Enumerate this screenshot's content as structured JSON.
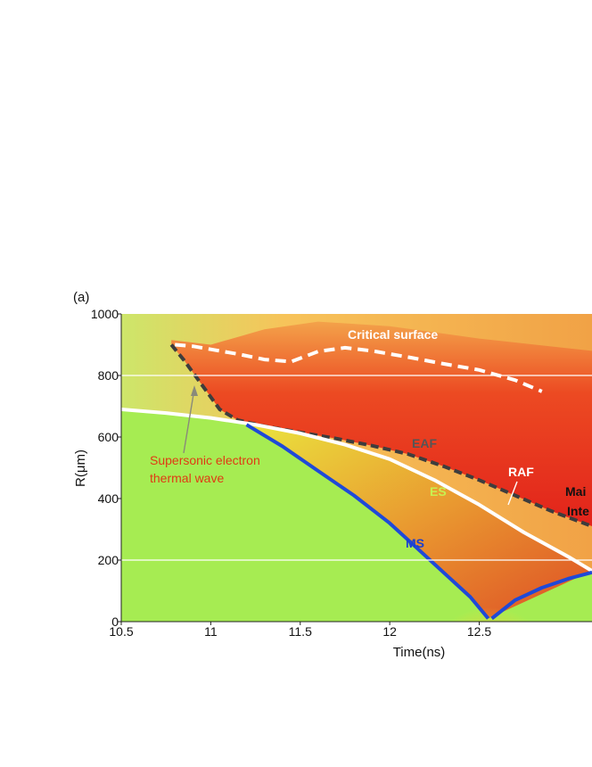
{
  "chart_data": {
    "type": "heatmap",
    "panel_label": "(a)",
    "xlabel": "Time(ns)",
    "ylabel": "R(μm)",
    "xlim": [
      10.5,
      13.13
    ],
    "ylim": [
      0,
      1000
    ],
    "x_ticks": [
      10.5,
      11,
      11.5,
      12,
      12.5
    ],
    "x_tick_labels": [
      "10.5",
      "11",
      "11.5",
      "12",
      "12.5"
    ],
    "y_ticks": [
      0,
      200,
      400,
      600,
      800,
      1000
    ],
    "y_tick_labels": [
      "0",
      "200",
      "400",
      "600",
      "800",
      "1000"
    ],
    "colors": {
      "background_field": "#a6ec52",
      "hot_red": "#e6271b",
      "orange": "#f07a2a",
      "yellow": "#f6e23a",
      "critical_surface": "#ffffff",
      "eaf": "#3d3d3d",
      "ms": "#1f49d8",
      "supersonic_text": "#e03a14",
      "eaf_text": "#555555",
      "es_text": "#c8f050",
      "raf_text": "#ffffff",
      "main_text": "#111111",
      "ms_text": "#1a3fd0"
    },
    "series": [
      {
        "name": "Critical surface",
        "style": "white dashed",
        "x": [
          10.8,
          10.9,
          11.0,
          11.15,
          11.3,
          11.45,
          11.6,
          11.75,
          11.9,
          12.1,
          12.3,
          12.5,
          12.7,
          12.85
        ],
        "y": [
          900,
          895,
          885,
          870,
          852,
          845,
          878,
          890,
          880,
          860,
          838,
          818,
          785,
          748
        ]
      },
      {
        "name": "EAF",
        "style": "dark dashed",
        "x": [
          10.78,
          10.85,
          10.95,
          11.05,
          11.15,
          11.3,
          11.5,
          11.7,
          11.9,
          12.1,
          12.3,
          12.5,
          12.7,
          12.9,
          13.13
        ],
        "y": [
          900,
          850,
          770,
          690,
          655,
          635,
          615,
          595,
          572,
          545,
          505,
          460,
          410,
          360,
          310
        ]
      },
      {
        "name": "RAF",
        "style": "white solid",
        "x": [
          10.5,
          10.75,
          11.0,
          11.25,
          11.5,
          11.75,
          12.0,
          12.25,
          12.5,
          12.75,
          13.0,
          13.13
        ],
        "y": [
          690,
          678,
          662,
          640,
          612,
          575,
          528,
          460,
          380,
          290,
          210,
          165
        ]
      },
      {
        "name": "MS",
        "style": "blue",
        "x": [
          11.2,
          11.4,
          11.6,
          11.8,
          12.0,
          12.15,
          12.3,
          12.45,
          12.55
        ],
        "y": [
          640,
          570,
          490,
          410,
          320,
          240,
          160,
          80,
          10
        ]
      },
      {
        "name": "MS reflected",
        "style": "blue",
        "x": [
          12.57,
          12.7,
          12.85,
          13.0,
          13.13
        ],
        "y": [
          10,
          70,
          110,
          140,
          160
        ]
      }
    ],
    "annotations": {
      "critical_surface": "Critical surface",
      "supersonic_line1": "Supersonic electron",
      "supersonic_line2": "thermal wave",
      "eaf": "EAF",
      "raf": "RAF",
      "es": "ES",
      "ms": "MS",
      "main_line1": "Mai",
      "main_line2": "Inte"
    }
  }
}
